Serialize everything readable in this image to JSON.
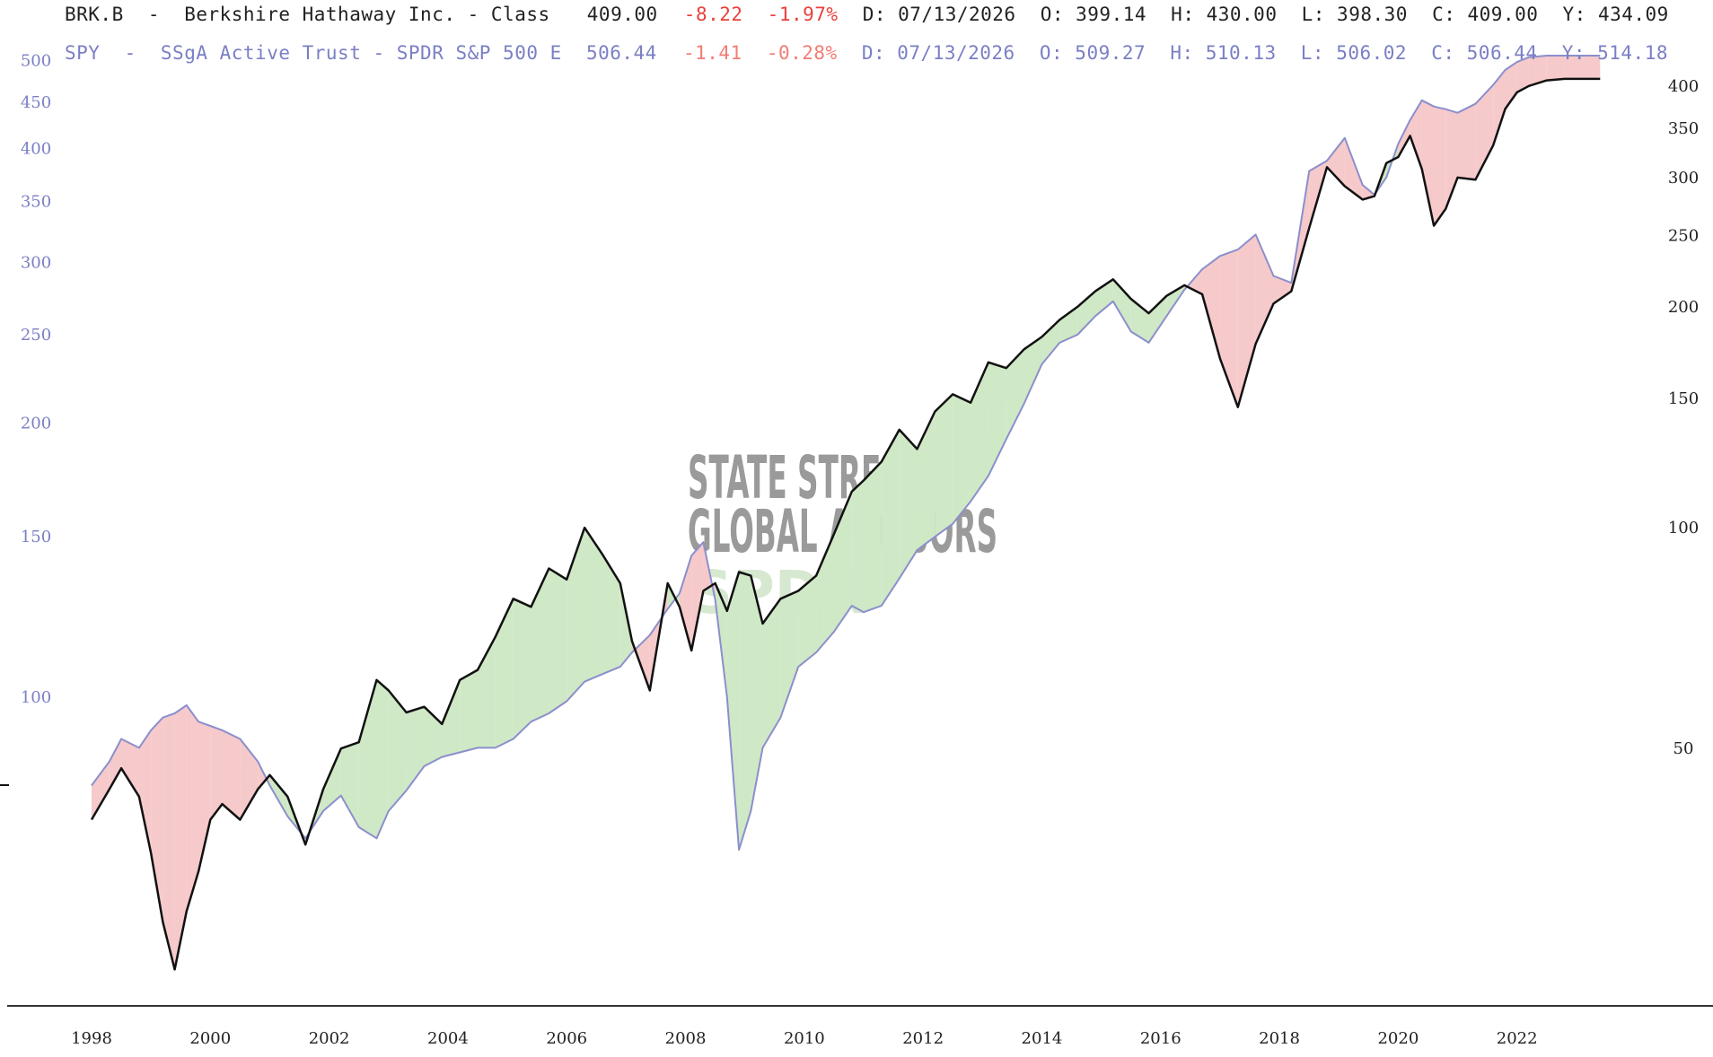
{
  "header": {
    "brk": {
      "ticker": "BRK.B",
      "name": "Berkshire Hathaway Inc. - Class",
      "last": "409.00",
      "change": "-8.22",
      "change_pct": "-1.97%",
      "date": "D: 07/13/2026",
      "open": "O: 399.14",
      "high": "H: 430.00",
      "low": "L: 398.30",
      "close": "C: 409.00",
      "y": "Y: 434.09"
    },
    "spy": {
      "ticker": "SPY",
      "name": "SSgA Active Trust - SPDR S&P 500 E",
      "last": "506.44",
      "change": "-1.41",
      "change_pct": "-0.28%",
      "date": "D: 07/13/2026",
      "open": "O: 509.27",
      "high": "H: 510.13",
      "low": "L: 506.02",
      "close": "C: 506.44",
      "y": "Y: 514.18"
    }
  },
  "watermark": {
    "line1": "STATE STREET",
    "line2": "GLOBAL ADVISORS",
    "line3": "SPDR"
  },
  "colors": {
    "brk_line": "#111111",
    "spy_line": "#8b8fcc",
    "spy_axis_text": "#7b7fc4",
    "brk_axis_text": "#222222",
    "negative": "#e8403a",
    "spread_positive": "#cfe8c6",
    "spread_negative": "#f6c9cb"
  },
  "chart_data": {
    "type": "line",
    "title": "",
    "xlabel": "",
    "ylabel": "",
    "log_scale": true,
    "grid": false,
    "fill_between_series": true,
    "x_ticks": [
      "1998",
      "2000",
      "2002",
      "2004",
      "2006",
      "2008",
      "2010",
      "2012",
      "2014",
      "2016",
      "2018",
      "2020",
      "2022"
    ],
    "y_left_ticks": [
      100,
      150,
      200,
      250,
      300,
      350,
      400,
      450,
      500
    ],
    "y_right_ticks": [
      50,
      100,
      150,
      200,
      250,
      300,
      350,
      400
    ],
    "y_left_range": [
      47,
      520
    ],
    "y_right_range": [
      23,
      455
    ],
    "series": [
      {
        "name": "BRK.B",
        "axis": "right",
        "x": [
          1998.0,
          1998.3,
          1998.5,
          1998.8,
          1999.0,
          1999.2,
          1999.4,
          1999.6,
          1999.8,
          2000.0,
          2000.2,
          2000.5,
          2000.8,
          2001.0,
          2001.3,
          2001.6,
          2001.9,
          2002.2,
          2002.5,
          2002.8,
          2003.0,
          2003.3,
          2003.6,
          2003.9,
          2004.2,
          2004.5,
          2004.8,
          2005.1,
          2005.4,
          2005.7,
          2006.0,
          2006.3,
          2006.6,
          2006.9,
          2007.1,
          2007.4,
          2007.7,
          2007.9,
          2008.1,
          2008.3,
          2008.5,
          2008.7,
          2008.9,
          2009.1,
          2009.3,
          2009.6,
          2009.9,
          2010.2,
          2010.5,
          2010.8,
          2011.0,
          2011.3,
          2011.6,
          2011.9,
          2012.2,
          2012.5,
          2012.8,
          2013.1,
          2013.4,
          2013.7,
          2014.0,
          2014.3,
          2014.6,
          2014.9,
          2015.2,
          2015.5,
          2015.8,
          2016.1,
          2016.4,
          2016.7,
          2017.0,
          2017.3,
          2017.6,
          2017.9,
          2018.2,
          2018.5,
          2018.8,
          2019.1,
          2019.4,
          2019.6,
          2019.8,
          2020.0,
          2020.2,
          2020.4,
          2020.6,
          2020.8,
          2021.0,
          2021.3,
          2021.6,
          2021.8,
          2022.0,
          2022.2,
          2022.5,
          2022.8,
          2023.1,
          2023.4
        ],
        "values": [
          40,
          44,
          47,
          43,
          36,
          29,
          25,
          30,
          34,
          40,
          42,
          40,
          44,
          46,
          43,
          37,
          44,
          50,
          51,
          62,
          60,
          56,
          57,
          54,
          62,
          64,
          71,
          80,
          78,
          88,
          85,
          100,
          92,
          84,
          70,
          60,
          84,
          78,
          68,
          82,
          84,
          77,
          87,
          86,
          74,
          80,
          82,
          86,
          98,
          112,
          116,
          123,
          136,
          128,
          144,
          152,
          148,
          168,
          165,
          175,
          182,
          192,
          200,
          210,
          218,
          205,
          196,
          207,
          214,
          208,
          170,
          146,
          178,
          202,
          210,
          256,
          310,
          292,
          280,
          283,
          314,
          320,
          342,
          308,
          258,
          272,
          300,
          298,
          332,
          372,
          392,
          400,
          407,
          409,
          409,
          409
        ]
      },
      {
        "name": "SPY",
        "axis": "left",
        "x": [
          1998.0,
          1998.3,
          1998.5,
          1998.8,
          1999.0,
          1999.2,
          1999.4,
          1999.6,
          1999.8,
          2000.0,
          2000.2,
          2000.5,
          2000.8,
          2001.0,
          2001.3,
          2001.6,
          2001.9,
          2002.2,
          2002.5,
          2002.8,
          2003.0,
          2003.3,
          2003.6,
          2003.9,
          2004.2,
          2004.5,
          2004.8,
          2005.1,
          2005.4,
          2005.7,
          2006.0,
          2006.3,
          2006.6,
          2006.9,
          2007.1,
          2007.4,
          2007.7,
          2007.9,
          2008.1,
          2008.3,
          2008.5,
          2008.7,
          2008.9,
          2009.1,
          2009.3,
          2009.6,
          2009.9,
          2010.2,
          2010.5,
          2010.8,
          2011.0,
          2011.3,
          2011.6,
          2011.9,
          2012.2,
          2012.5,
          2012.8,
          2013.1,
          2013.4,
          2013.7,
          2014.0,
          2014.3,
          2014.6,
          2014.9,
          2015.2,
          2015.5,
          2015.8,
          2016.1,
          2016.4,
          2016.7,
          2017.0,
          2017.3,
          2017.6,
          2017.9,
          2018.2,
          2018.5,
          2018.8,
          2019.1,
          2019.4,
          2019.6,
          2019.8,
          2020.0,
          2020.2,
          2020.4,
          2020.6,
          2020.8,
          2021.0,
          2021.3,
          2021.6,
          2021.8,
          2022.0,
          2022.2,
          2022.5,
          2022.8,
          2023.1,
          2023.4
        ],
        "values": [
          80,
          85,
          90,
          88,
          92,
          95,
          96,
          98,
          94,
          93,
          92,
          90,
          85,
          80,
          74,
          70,
          75,
          78,
          72,
          70,
          75,
          79,
          84,
          86,
          87,
          88,
          88,
          90,
          94,
          96,
          99,
          104,
          106,
          108,
          112,
          117,
          125,
          130,
          143,
          148,
          128,
          100,
          68,
          75,
          88,
          95,
          108,
          112,
          118,
          126,
          124,
          126,
          135,
          145,
          150,
          155,
          164,
          175,
          192,
          210,
          232,
          245,
          250,
          262,
          272,
          252,
          245,
          262,
          280,
          295,
          305,
          310,
          322,
          290,
          285,
          378,
          388,
          411,
          365,
          356,
          372,
          405,
          430,
          452,
          445,
          442,
          438,
          448,
          470,
          488,
          498,
          504,
          506,
          506,
          506,
          506
        ]
      }
    ]
  }
}
